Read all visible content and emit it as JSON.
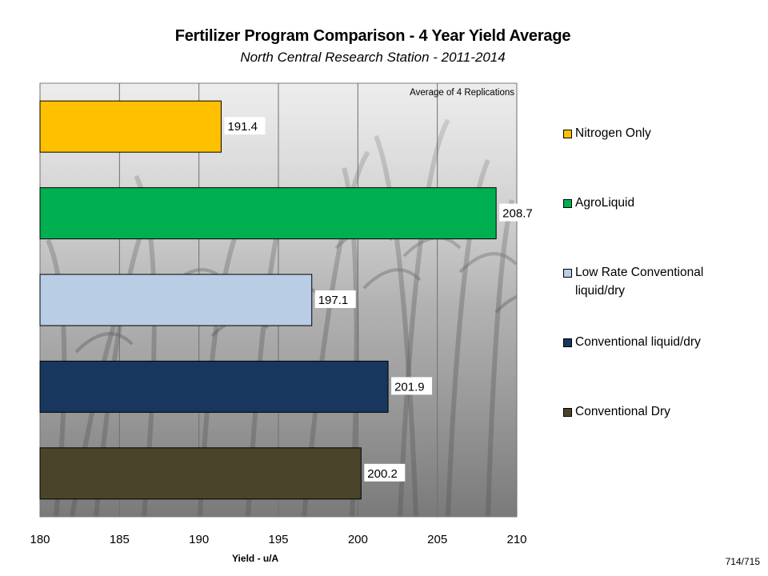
{
  "chart_data": {
    "type": "bar",
    "orientation": "horizontal",
    "title": "Fertilizer Program Comparison - 4 Year Yield Average",
    "subtitle": "North Central Research Station - 2011-2014",
    "annotation": "Average of 4 Replications",
    "xlabel": "Yield - u/A",
    "xlim": [
      180,
      210
    ],
    "xticks": [
      "180",
      "185",
      "190",
      "195",
      "200",
      "205",
      "210"
    ],
    "grid": "vertical",
    "legend_position": "right",
    "categories": [
      "Nitrogen Only",
      "AgroLiquid",
      "Low Rate Conventional liquid/dry",
      "Conventional liquid/dry",
      "Conventional Dry"
    ],
    "values": [
      191.4,
      208.7,
      197.1,
      201.9,
      200.2
    ],
    "value_labels": [
      "191.4",
      "208.7",
      "197.1",
      "201.9",
      "200.2"
    ],
    "colors": [
      "#ffc000",
      "#00b050",
      "#b9cde5",
      "#17375e",
      "#4a452a"
    ]
  },
  "legend": {
    "items": [
      {
        "label_line1": "Nitrogen Only",
        "label_line2": "",
        "color": "#ffc000"
      },
      {
        "label_line1": "AgroLiquid",
        "label_line2": "",
        "color": "#00b050"
      },
      {
        "label_line1": "Low Rate Conventional",
        "label_line2": "liquid/dry",
        "color": "#b9cde5"
      },
      {
        "label_line1": "Conventional liquid/dry",
        "label_line2": "",
        "color": "#17375e"
      },
      {
        "label_line1": "Conventional Dry",
        "label_line2": "",
        "color": "#4a452a"
      }
    ]
  },
  "page_number": "714/715"
}
